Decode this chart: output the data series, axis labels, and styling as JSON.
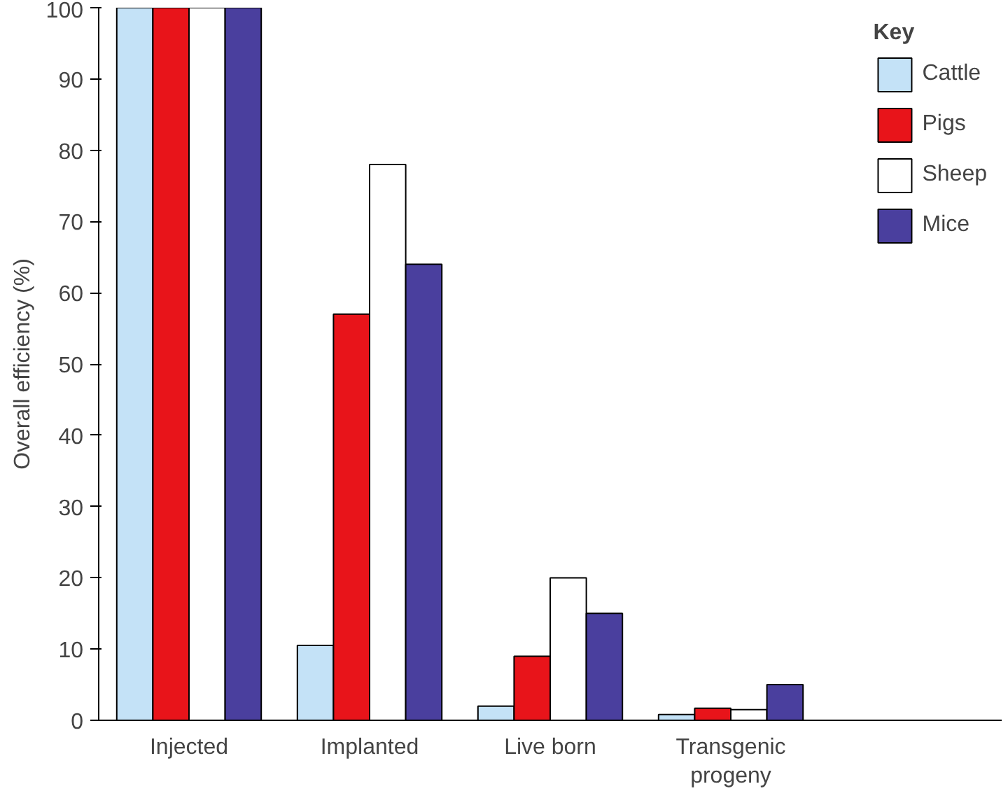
{
  "chart_data": {
    "type": "bar",
    "ylabel": "Overall efficiency (%)",
    "legend_title": "Key",
    "categories": [
      "Injected",
      "Implanted",
      "Live born",
      "Transgenic\nprogeny"
    ],
    "series": [
      {
        "name": "Cattle",
        "color": "#c4e2f7",
        "values": [
          100,
          10.5,
          2,
          0.8
        ]
      },
      {
        "name": "Pigs",
        "color": "#e8141a",
        "values": [
          100,
          57,
          9,
          1.7
        ]
      },
      {
        "name": "Sheep",
        "color": "#ffffff",
        "values": [
          100,
          78,
          20,
          1.5
        ]
      },
      {
        "name": "Mice",
        "color": "#4a3f9e",
        "values": [
          100,
          64,
          15,
          5
        ]
      }
    ],
    "ylim": [
      0,
      100
    ],
    "yticks": [
      0,
      10,
      20,
      30,
      40,
      50,
      60,
      70,
      80,
      90,
      100
    ],
    "grid": false,
    "legend": "top right"
  }
}
